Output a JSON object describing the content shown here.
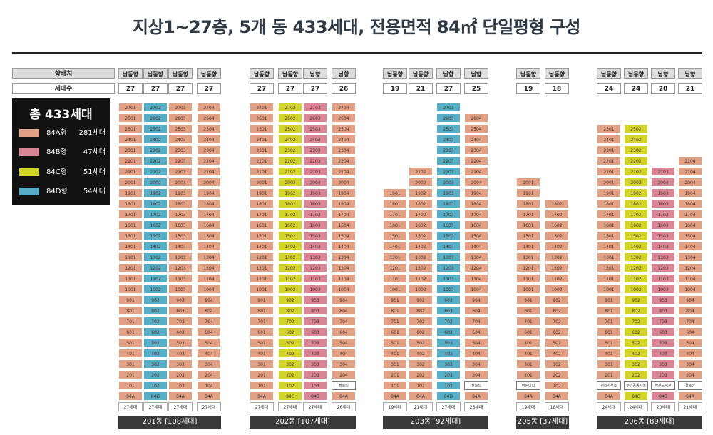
{
  "page": {
    "title": "지상1~27층, 5개 동 433세대, 전용면적 84㎡ 단일평형 구성",
    "orientation_header": "향배치",
    "count_header": "세대수"
  },
  "legend": {
    "total": "총 433세대",
    "items": [
      {
        "type": "84A형",
        "count": "281세대",
        "color": "#e2a185"
      },
      {
        "type": "84B형",
        "count": "47세대",
        "color": "#d98596"
      },
      {
        "type": "84C형",
        "count": "51세대",
        "color": "#d3d42a"
      },
      {
        "type": "84D형",
        "count": "54세대",
        "color": "#56aec7"
      }
    ]
  },
  "buildings": [
    {
      "label": "201동 [108세대]",
      "lines": [
        {
          "orientation": "남동향",
          "units": "27",
          "bottom": "84A",
          "count": "27세대",
          "color": "A",
          "ground": "101"
        },
        {
          "orientation": "남동향",
          "units": "27",
          "bottom": "84D",
          "count": "27세대",
          "color": "D",
          "ground": "102"
        },
        {
          "orientation": "남동향",
          "units": "27",
          "bottom": "84A",
          "count": "27세대",
          "color": "A",
          "ground": "103"
        },
        {
          "orientation": "남동향",
          "units": "27",
          "bottom": "84A",
          "count": "27세대",
          "color": "A",
          "ground": "104"
        }
      ]
    },
    {
      "label": "202동 [107세대]",
      "lines": [
        {
          "orientation": "남동향",
          "units": "27",
          "bottom": "84A",
          "count": "27세대",
          "color": "A",
          "ground": "101"
        },
        {
          "orientation": "남동향",
          "units": "27",
          "bottom": "84C",
          "count": "27세대",
          "color": "C",
          "ground": "102"
        },
        {
          "orientation": "남향",
          "units": "27",
          "bottom": "84B",
          "count": "27세대",
          "color": "B",
          "ground": "103"
        },
        {
          "orientation": "남향",
          "units": "26",
          "bottom": "84A",
          "count": "26세대",
          "color": "A",
          "ground": "필로티"
        }
      ]
    },
    {
      "label": "203동 [92세대]",
      "lines": [
        {
          "orientation": "남동향",
          "units": "19",
          "bottom": "84A",
          "count": "19세대",
          "color": "A",
          "ground": "101"
        },
        {
          "orientation": "남동향",
          "units": "21",
          "bottom": "84A",
          "count": "21세대",
          "color": "A",
          "ground": "102"
        },
        {
          "orientation": "남향",
          "units": "27",
          "bottom": "84D",
          "count": "27세대",
          "color": "D",
          "ground": "103"
        },
        {
          "orientation": "남향",
          "units": "25",
          "bottom": "84A",
          "count": "25세대",
          "color": "A",
          "ground": "필로티"
        }
      ]
    },
    {
      "label": "205동 [37세대]",
      "lines": [
        {
          "orientation": "남동향",
          "units": "19",
          "bottom": "84A",
          "count": "19세대",
          "color": "A",
          "ground": "어린이집"
        },
        {
          "orientation": "남동향",
          "units": "18",
          "bottom": "84A",
          "count": "18세대",
          "color": "A",
          "ground": ""
        }
      ]
    },
    {
      "label": "206동 [89세대]",
      "lines": [
        {
          "orientation": "남동향",
          "units": "24",
          "bottom": "84A",
          "count": "24세대",
          "color": "A",
          "ground": "관리사무소"
        },
        {
          "orientation": "남동향",
          "units": "24",
          "bottom": "84C",
          "count": "24세대",
          "color": "C",
          "ground": "주민공동시설"
        },
        {
          "orientation": "남향",
          "units": "20",
          "bottom": "84B",
          "count": "20세대",
          "color": "B",
          "ground": "작은도서관"
        },
        {
          "orientation": "남향",
          "units": "21",
          "bottom": "84A",
          "count": "21세대",
          "color": "A",
          "ground": "경로당"
        }
      ]
    }
  ]
}
